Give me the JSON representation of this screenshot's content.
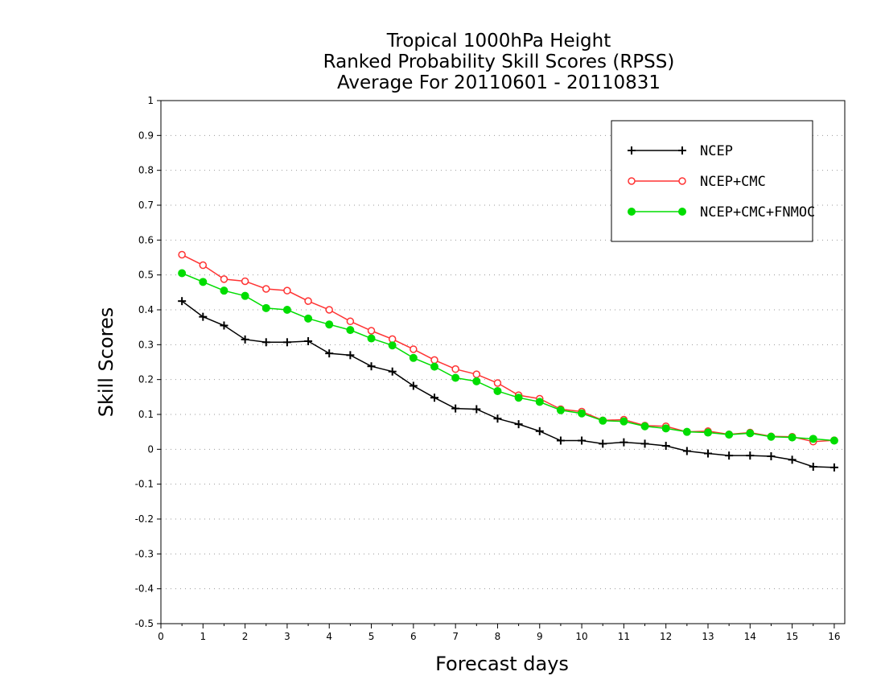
{
  "chart_data": {
    "type": "line",
    "title": [
      "Tropical 1000hPa Height",
      "Ranked Probability Skill Scores (RPSS)",
      "Average For 20110601 - 20110831"
    ],
    "xlabel": "Forecast days",
    "ylabel": "Skill Scores",
    "xlim": [
      0,
      16.25
    ],
    "ylim": [
      -0.5,
      1
    ],
    "x_ticks": [
      "0",
      "1",
      "2",
      "3",
      "4",
      "5",
      "6",
      "7",
      "8",
      "9",
      "10",
      "11",
      "12",
      "13",
      "14",
      "15",
      "16"
    ],
    "y_ticks": [
      "-0.5",
      "-0.4",
      "-0.3",
      "-0.2",
      "-0.1",
      "0",
      "0.1",
      "0.2",
      "0.3",
      "0.4",
      "0.5",
      "0.6",
      "0.7",
      "0.8",
      "0.9",
      "1"
    ],
    "grid": true,
    "legend_position": "top-right",
    "x": [
      0.5,
      1,
      1.5,
      2,
      2.5,
      3,
      3.5,
      4,
      4.5,
      5,
      5.5,
      6,
      6.5,
      7,
      7.5,
      8,
      8.5,
      9,
      9.5,
      10,
      10.5,
      11,
      11.5,
      12,
      12.5,
      13,
      13.5,
      14,
      14.5,
      15,
      15.5,
      16
    ],
    "series": [
      {
        "name": "NCEP",
        "color": "#000000",
        "marker": "plus",
        "values": [
          0.425,
          0.38,
          0.355,
          0.315,
          0.307,
          0.307,
          0.31,
          0.275,
          0.27,
          0.238,
          0.223,
          0.182,
          0.148,
          0.117,
          0.115,
          0.088,
          0.072,
          0.052,
          0.025,
          0.025,
          0.016,
          0.02,
          0.016,
          0.01,
          -0.005,
          -0.012,
          -0.018,
          -0.018,
          -0.02,
          -0.03,
          -0.05,
          -0.052
        ]
      },
      {
        "name": "NCEP+CMC",
        "color": "#ff3333",
        "marker": "open-circle",
        "values": [
          0.558,
          0.528,
          0.488,
          0.482,
          0.46,
          0.455,
          0.425,
          0.4,
          0.367,
          0.34,
          0.316,
          0.287,
          0.256,
          0.23,
          0.215,
          0.19,
          0.155,
          0.145,
          0.115,
          0.108,
          0.083,
          0.085,
          0.068,
          0.066,
          0.05,
          0.052,
          0.043,
          0.048,
          0.037,
          0.036,
          0.022,
          0.026
        ]
      },
      {
        "name": "NCEP+CMC+FNMOC",
        "color": "#00dd00",
        "marker": "filled-circle",
        "values": [
          0.505,
          0.48,
          0.455,
          0.44,
          0.405,
          0.4,
          0.375,
          0.358,
          0.342,
          0.318,
          0.298,
          0.262,
          0.237,
          0.205,
          0.195,
          0.167,
          0.148,
          0.136,
          0.112,
          0.103,
          0.082,
          0.08,
          0.066,
          0.06,
          0.05,
          0.048,
          0.042,
          0.046,
          0.036,
          0.034,
          0.03,
          0.025
        ]
      }
    ]
  }
}
